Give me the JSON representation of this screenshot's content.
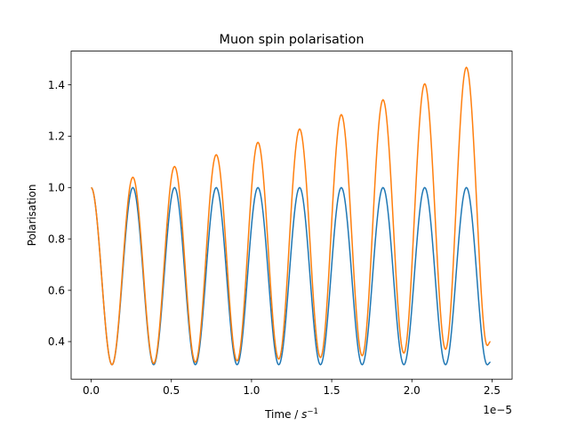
{
  "chart_data": {
    "type": "line",
    "title": "Muon spin polarisation",
    "xlabel": "Time / ",
    "xlabel_unit": "s",
    "xlabel_exp": "−1",
    "ylabel": "Polarisation",
    "offset_text": "1e−5",
    "xlim": [
      -0.125,
      2.625
    ],
    "ylim": [
      0.254,
      1.531
    ],
    "x_ticks": [
      0.0,
      0.5,
      1.0,
      1.5,
      2.0,
      2.5
    ],
    "x_tick_labels": [
      "0.0",
      "0.5",
      "1.0",
      "1.5",
      "2.0",
      "2.5"
    ],
    "y_ticks": [
      0.4,
      0.6,
      0.8,
      1.0,
      1.2,
      1.4
    ],
    "y_tick_labels": [
      "0.4",
      "0.6",
      "0.8",
      "1.0",
      "1.2",
      "1.4"
    ],
    "grid": false,
    "legend": false,
    "series": [
      {
        "color": "#1f77b4",
        "x": [
          0.0,
          0.13,
          0.26,
          0.39,
          0.52,
          0.65,
          0.78,
          0.91,
          1.04,
          1.17,
          1.3,
          1.43,
          1.56,
          1.69,
          1.82,
          1.95,
          2.08,
          2.21,
          2.34,
          2.47,
          2.49
        ],
        "y": [
          1.0,
          0.31,
          1.0,
          0.31,
          1.0,
          0.31,
          1.0,
          0.31,
          1.0,
          0.31,
          1.0,
          0.31,
          1.0,
          0.31,
          1.0,
          0.31,
          1.0,
          0.31,
          1.0,
          0.31,
          0.32
        ]
      },
      {
        "color": "#ff7f0e",
        "x": [
          0.0,
          0.13,
          0.26,
          0.39,
          0.52,
          0.65,
          0.78,
          0.91,
          1.04,
          1.17,
          1.3,
          1.43,
          1.56,
          1.69,
          1.82,
          1.95,
          2.08,
          2.21,
          2.34,
          2.47,
          2.49
        ],
        "y": [
          1.0,
          0.31,
          1.04,
          0.315,
          1.082,
          0.32,
          1.128,
          0.325,
          1.176,
          0.332,
          1.228,
          0.338,
          1.284,
          0.345,
          1.342,
          0.355,
          1.404,
          0.37,
          1.468,
          0.385,
          0.4
        ]
      }
    ]
  }
}
